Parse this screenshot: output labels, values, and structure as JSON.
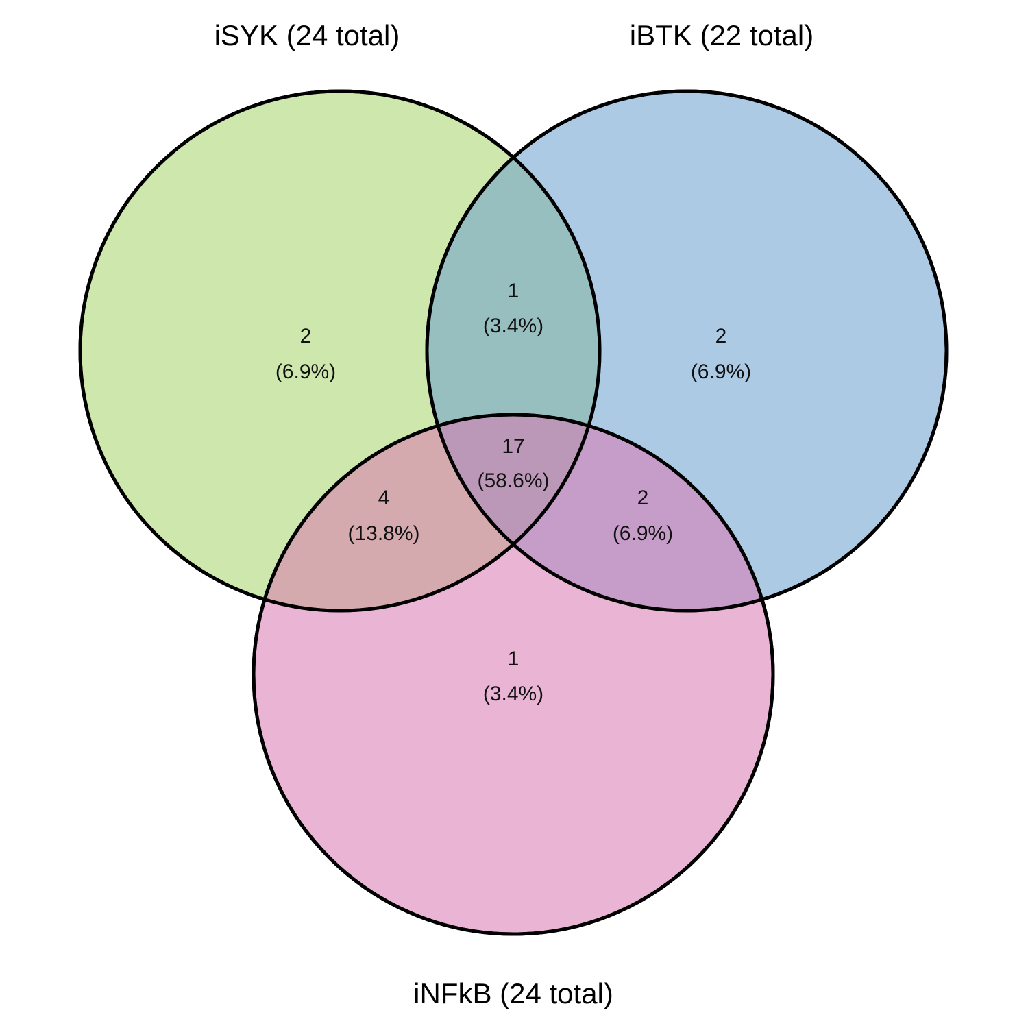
{
  "chart_data": {
    "type": "venn",
    "sets": [
      {
        "id": "isyk",
        "label": "iSYK (24 total)",
        "color": "#a6d36a"
      },
      {
        "id": "ibtk",
        "label": "iBTK (22 total)",
        "color": "#6a9fd0"
      },
      {
        "id": "infkb",
        "label": "iNFkB (24 total)",
        "color": "#d878b0"
      }
    ],
    "regions": [
      {
        "sets": [
          "isyk"
        ],
        "count": "2",
        "percent": "(6.9%)"
      },
      {
        "sets": [
          "ibtk"
        ],
        "count": "2",
        "percent": "(6.9%)"
      },
      {
        "sets": [
          "infkb"
        ],
        "count": "1",
        "percent": "(3.4%)"
      },
      {
        "sets": [
          "isyk",
          "ibtk"
        ],
        "count": "1",
        "percent": "(3.4%)"
      },
      {
        "sets": [
          "isyk",
          "infkb"
        ],
        "count": "4",
        "percent": "(13.8%)"
      },
      {
        "sets": [
          "ibtk",
          "infkb"
        ],
        "count": "2",
        "percent": "(6.9%)"
      },
      {
        "sets": [
          "isyk",
          "ibtk",
          "infkb"
        ],
        "count": "17",
        "percent": "(58.6%)"
      }
    ]
  }
}
